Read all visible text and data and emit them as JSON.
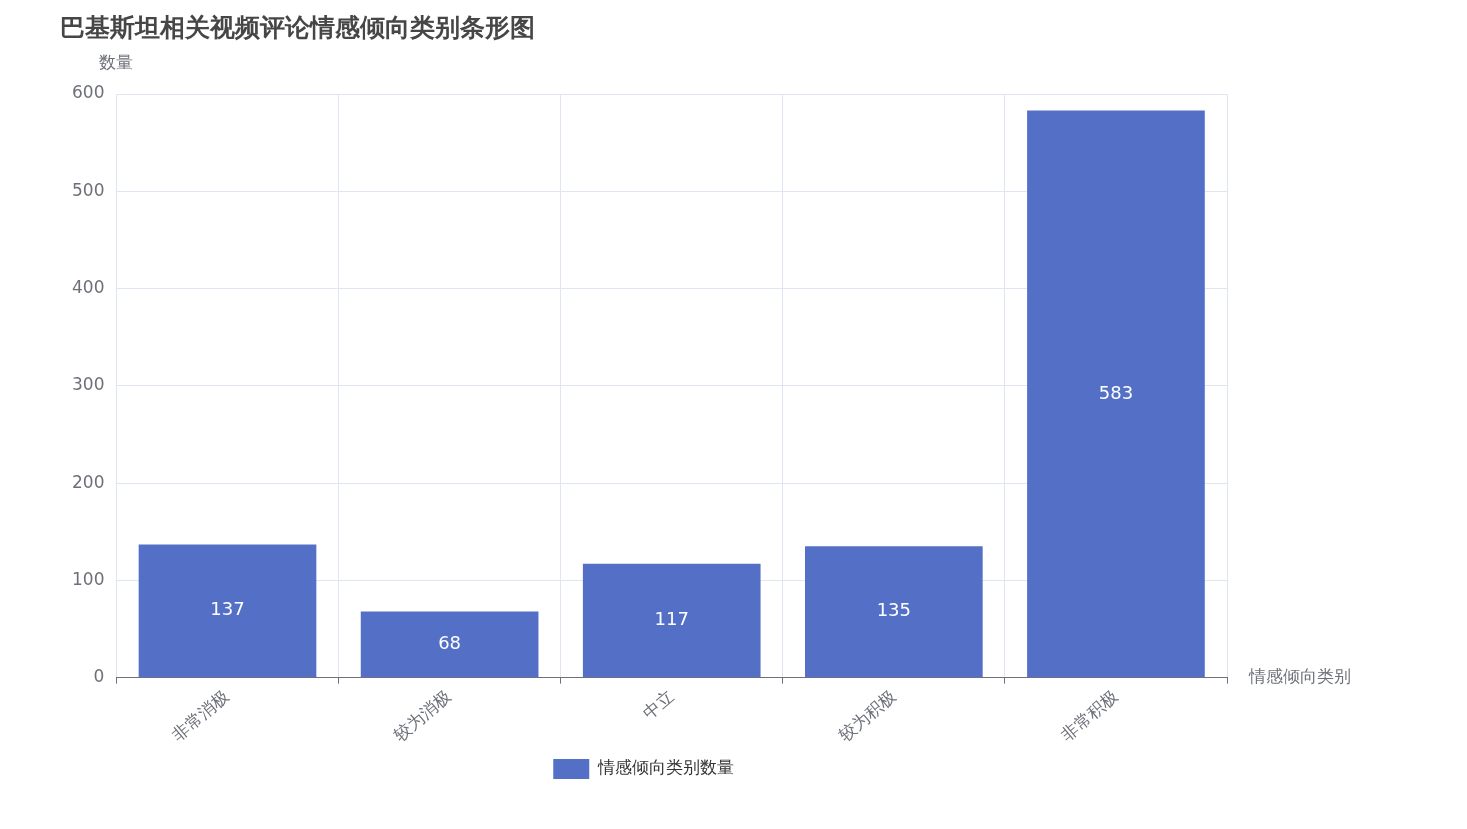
{
  "chart_data": {
    "type": "bar",
    "title": "巴基斯坦相关视频评论情感倾向类别条形图",
    "xlabel": "情感倾向类别",
    "ylabel": "数量",
    "categories": [
      "非常消极",
      "较为消极",
      "中立",
      "较为积极",
      "非常积极"
    ],
    "series": [
      {
        "name": "情感倾向类别数量",
        "color": "#5470c6",
        "values": [
          137,
          68,
          117,
          135,
          583
        ]
      }
    ],
    "ylim": [
      0,
      600
    ],
    "yticks": [
      0,
      100,
      200,
      300,
      400,
      500,
      600
    ],
    "grid": true,
    "legend": "bottom",
    "data_labels": true
  }
}
